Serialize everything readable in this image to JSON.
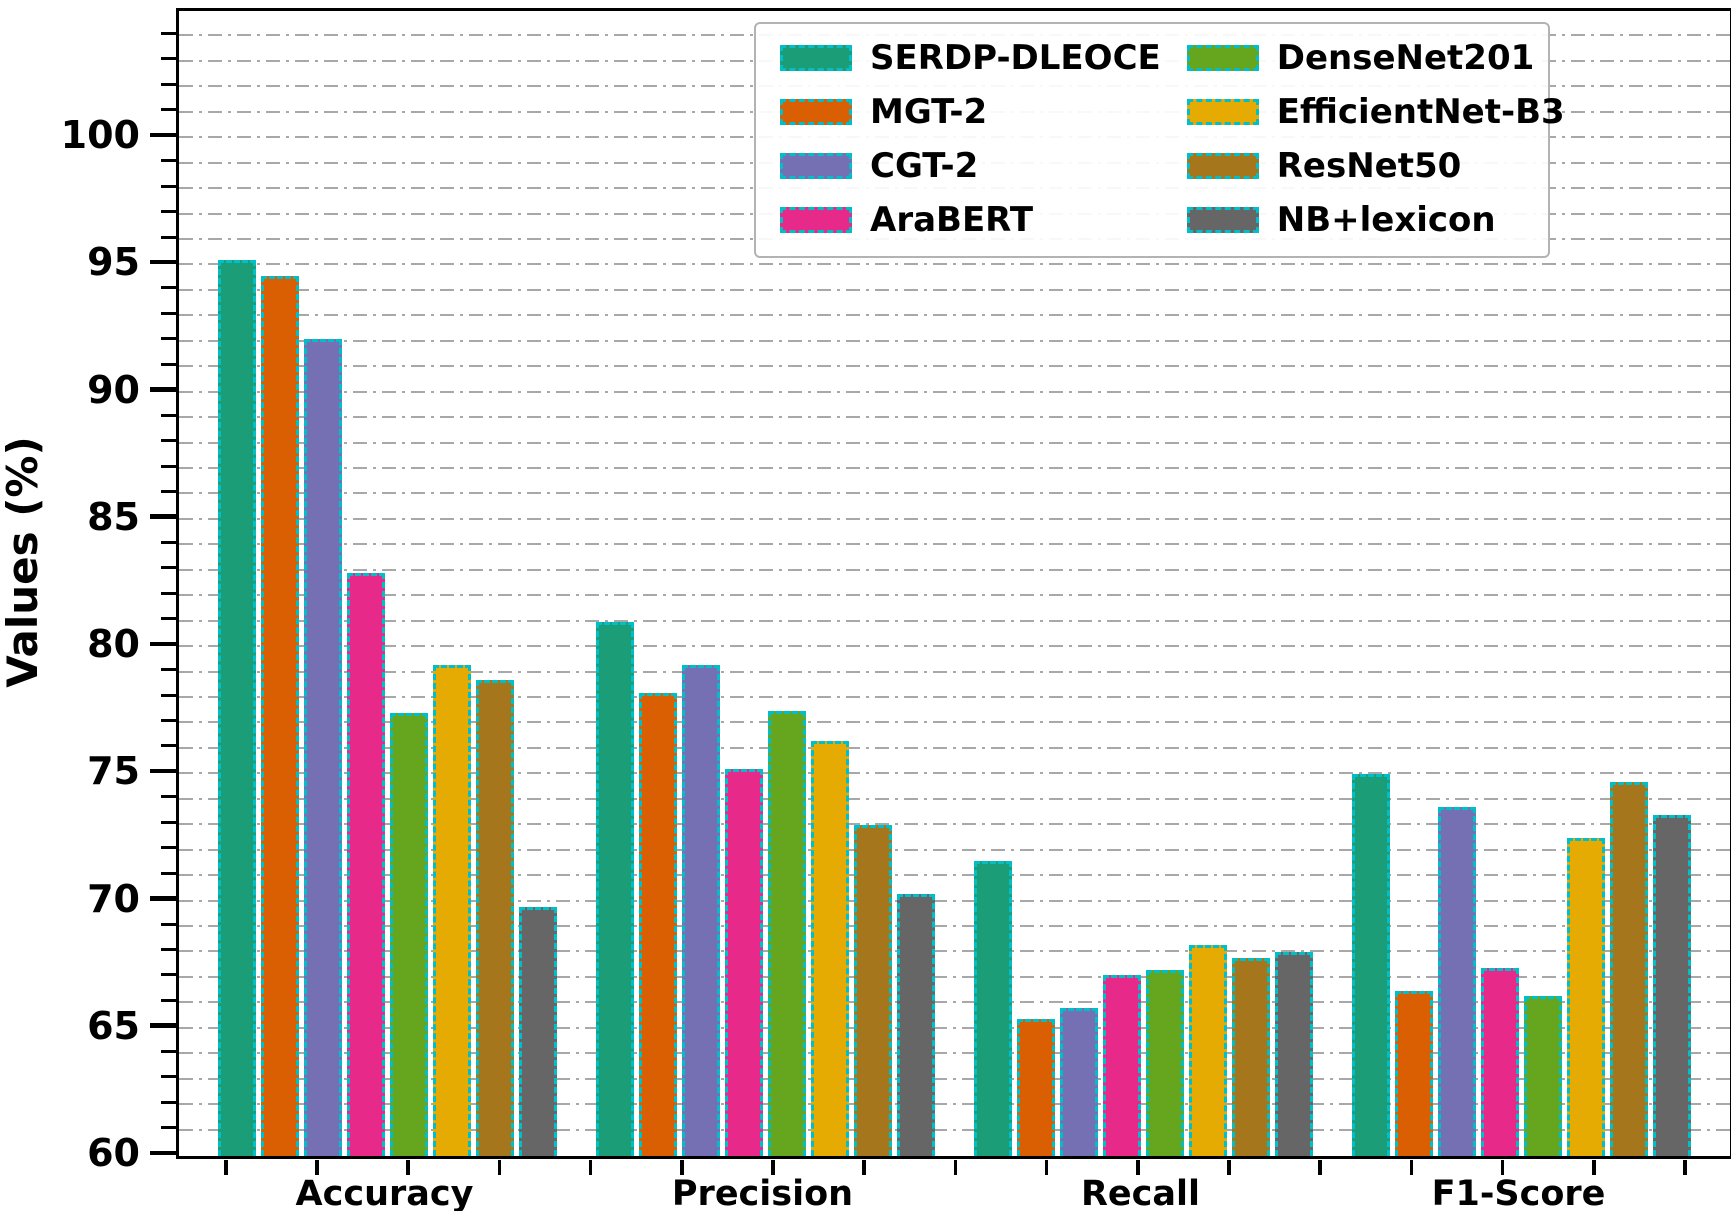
{
  "figure": {
    "ylabel": "Values (%)",
    "y_ticks": [
      60,
      65,
      70,
      75,
      80,
      85,
      90,
      95,
      100
    ],
    "x_tick_labels": [
      "Accuracy",
      "Precision",
      "Recall",
      "F1-Score"
    ]
  },
  "chart_data": {
    "type": "bar",
    "title": "",
    "xlabel": "",
    "ylabel": "Values (%)",
    "ylim": [
      60,
      105
    ],
    "grid": true,
    "grid_style": "gray dashed horizontal minor gridlines every 1 unit",
    "legend_position": "upper right inside plot, 2 columns",
    "bar_edge_color": "#00bfc9",
    "bar_edge_style": "dashed",
    "categories": [
      "Accuracy",
      "Precision",
      "Recall",
      "F1-Score"
    ],
    "series": [
      {
        "name": "SERDP-DLEOCE",
        "color": "#1b9e77",
        "values": [
          95.2,
          81.0,
          71.6,
          75.0
        ]
      },
      {
        "name": "MGT-2",
        "color": "#d95f02",
        "values": [
          94.6,
          78.2,
          65.4,
          66.5
        ]
      },
      {
        "name": "CGT-2",
        "color": "#7570b3",
        "values": [
          92.1,
          79.3,
          65.8,
          73.7
        ]
      },
      {
        "name": "AraBERT",
        "color": "#e7298a",
        "values": [
          82.9,
          75.2,
          67.1,
          67.4
        ]
      },
      {
        "name": "DenseNet201",
        "color": "#66a61e",
        "values": [
          77.4,
          77.5,
          67.3,
          66.3
        ]
      },
      {
        "name": "EfficientNet-B3",
        "color": "#e6ab02",
        "values": [
          79.3,
          76.3,
          68.3,
          72.5
        ]
      },
      {
        "name": "ResNet50",
        "color": "#a6761d",
        "values": [
          78.7,
          73.0,
          67.8,
          74.7
        ]
      },
      {
        "name": "NB+lexicon",
        "color": "#666666",
        "values": [
          69.8,
          70.3,
          68.0,
          73.4
        ]
      }
    ]
  }
}
